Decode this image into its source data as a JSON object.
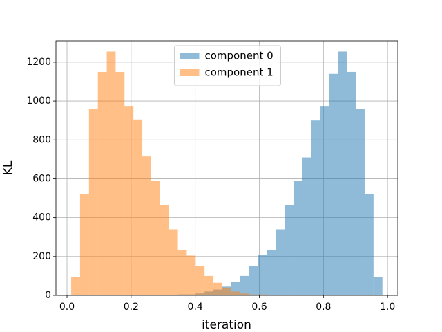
{
  "chart_data": {
    "type": "histogram",
    "xlabel": "iteration",
    "ylabel": "KL",
    "bins": [
      0.013,
      0.04074,
      0.06849,
      0.09623,
      0.12397,
      0.15171,
      0.17946,
      0.2072,
      0.23494,
      0.26269,
      0.29043,
      0.31817,
      0.34591,
      0.37366,
      0.4014,
      0.42914,
      0.45689,
      0.48463,
      0.51237,
      0.54011,
      0.56786,
      0.5956,
      0.62334,
      0.65109,
      0.67883,
      0.70657,
      0.73431,
      0.76206,
      0.7898,
      0.81754,
      0.84529,
      0.87303,
      0.90077,
      0.92851,
      0.95626,
      0.984
    ],
    "series": [
      {
        "name": "component 0",
        "color": "#1f77b4",
        "values": [
          0,
          0,
          0,
          0,
          0,
          0,
          0,
          0,
          0,
          0,
          0,
          0,
          5,
          5,
          10,
          20,
          30,
          45,
          70,
          100,
          150,
          210,
          235,
          340,
          465,
          590,
          710,
          900,
          975,
          1140,
          1255,
          1150,
          960,
          520,
          95
        ]
      },
      {
        "name": "component 1",
        "color": "#ff7f0e",
        "values": [
          95,
          520,
          960,
          1150,
          1255,
          1150,
          975,
          905,
          715,
          590,
          465,
          340,
          235,
          205,
          150,
          100,
          65,
          40,
          20,
          10,
          5,
          5,
          3,
          0,
          0,
          0,
          0,
          0,
          0,
          0,
          0,
          0,
          0,
          0,
          0
        ]
      }
    ],
    "xlim": [
      -0.0345,
      1.032
    ],
    "ylim": [
      0,
      1310
    ],
    "xticks": [
      {
        "value": 0,
        "label": "0.0"
      },
      0.2,
      0.4,
      0.6,
      0.8,
      {
        "value": 1,
        "label": "1.0"
      }
    ],
    "yticks": [
      0,
      200,
      400,
      600,
      800,
      1000,
      1200
    ],
    "grid": true,
    "legend": "upper center",
    "alpha": 0.5
  }
}
